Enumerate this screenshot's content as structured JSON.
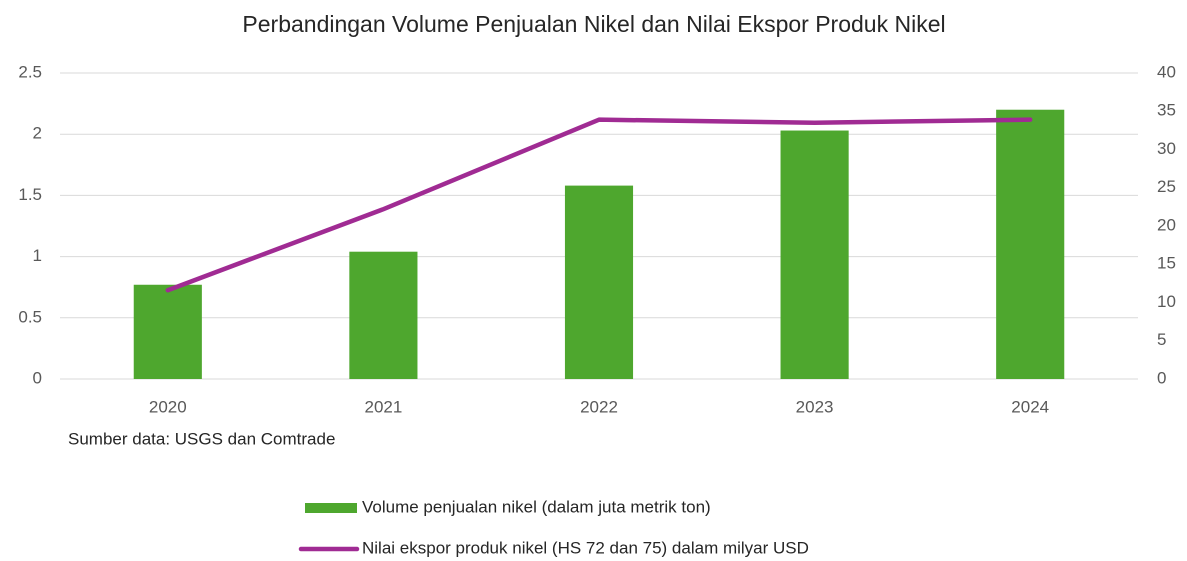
{
  "chart_data": {
    "type": "bar",
    "title": "Perbandingan Volume Penjualan Nikel dan Nilai Ekspor Produk Nikel",
    "note": "Sumber data: USGS dan Comtrade",
    "categories": [
      "2020",
      "2021",
      "2022",
      "2023",
      "2024"
    ],
    "series": [
      {
        "name": "Volume penjualan nikel (dalam juta metrik ton)",
        "type": "bar",
        "color": "#4ea72e",
        "values": [
          0.77,
          1.04,
          1.58,
          2.03,
          2.2
        ]
      },
      {
        "name": "Nilai ekspor produk nikel (HS 72 dan 75) dalam milyar USD",
        "type": "line",
        "axis": "y2",
        "color": "#a02b93",
        "values": [
          11.6,
          22.2,
          33.9,
          33.5,
          33.9
        ]
      }
    ],
    "ylim": [
      0,
      2.5
    ],
    "yticks": [
      0,
      0.5,
      1,
      1.5,
      2,
      2.5
    ],
    "y2lim": [
      0,
      40
    ],
    "y2ticks": [
      0,
      5,
      10,
      15,
      20,
      25,
      30,
      35,
      40
    ],
    "grid": true,
    "legend": "bottom"
  }
}
